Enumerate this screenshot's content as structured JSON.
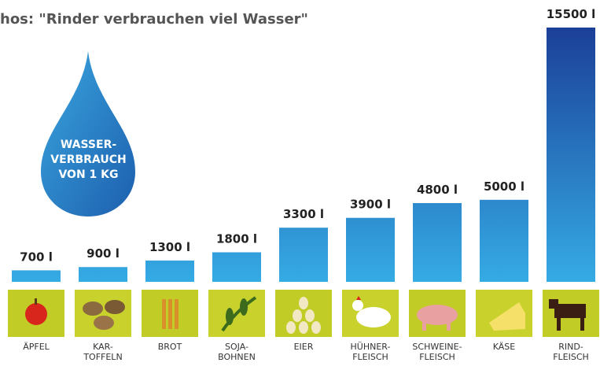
{
  "chart_data": {
    "type": "bar",
    "title": "hos: \"Rinder verbrauchen viel Wasser\"",
    "annotation": "WASSER-\nVERBRAUCH\nVON 1 KG",
    "categories": [
      "ÄPFEL",
      "KAR-\nTOFFELN",
      "BROT",
      "SOJA-\nBOHNEN",
      "EIER",
      "HÜHNER-\nFLEISCH",
      "SCHWEINE-\nFLEISCH",
      "KÄSE",
      "RIND-\nFLEISCH"
    ],
    "values": [
      700,
      900,
      1300,
      1800,
      3300,
      3900,
      4800,
      5000,
      15500
    ],
    "value_labels": [
      "700 l",
      "900 l",
      "1300 l",
      "1800 l",
      "3300 l",
      "3900 l",
      "4800 l",
      "5000 l",
      "15500 l"
    ]
  }
}
